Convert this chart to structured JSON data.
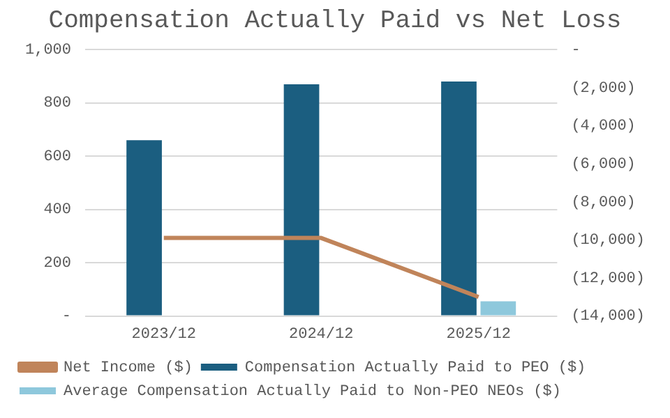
{
  "chart_data": {
    "type": "bar",
    "title": "Compensation Actually Paid vs Net Loss",
    "categories": [
      "2023/12",
      "2024/12",
      "2025/12"
    ],
    "series": [
      {
        "name": "Compensation Actually Paid to PEO ($)",
        "color": "#1b5e80",
        "values": [
          660,
          870,
          880
        ]
      },
      {
        "name": "Average Compensation Actually Paid to Non-PEO NEOs ($)",
        "color": "#8ec8dc",
        "values": [
          0,
          0,
          55
        ]
      },
      {
        "name": "Net Income ($)",
        "type": "line",
        "axis": "y2",
        "color": "#c0845a",
        "values": [
          -9900,
          -9900,
          -13000
        ]
      }
    ],
    "ylim": [
      0,
      1000
    ],
    "yticks": [
      {
        "value": 0,
        "label": "-"
      },
      200,
      400,
      600,
      800,
      {
        "value": 1000,
        "label": "1,000"
      }
    ],
    "y2lim": [
      -14000,
      0
    ],
    "y2ticks": [
      {
        "value": -14000,
        "label": "(14,000)"
      },
      {
        "value": -12000,
        "label": "(12,000)"
      },
      {
        "value": -10000,
        "label": "(10,000)"
      },
      {
        "value": -8000,
        "label": "(8,000)"
      },
      {
        "value": -6000,
        "label": "(6,000)"
      },
      {
        "value": -4000,
        "label": "(4,000)"
      },
      {
        "value": -2000,
        "label": "(2,000)"
      },
      {
        "value": 0,
        "label": "-"
      }
    ],
    "grid": "y",
    "legend": "bottom"
  }
}
